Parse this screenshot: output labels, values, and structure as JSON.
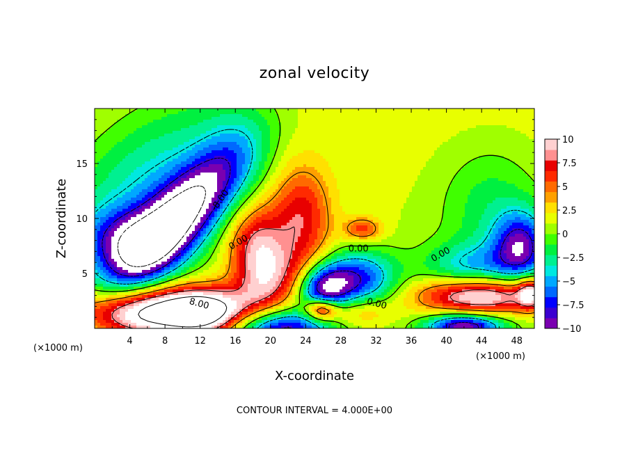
{
  "title": "zonal velocity",
  "footer": "CONTOUR INTERVAL = 4.000E+00",
  "chart_data": {
    "type": "heatmap",
    "title": "zonal velocity",
    "xlabel": "X-coordinate",
    "ylabel": "Z-coordinate",
    "x_unit_note_left": "(×1000 m)",
    "x_unit_note_right": "(×1000 m)",
    "xlim": [
      0,
      50
    ],
    "ylim": [
      0,
      20
    ],
    "x_ticks": [
      4,
      8,
      12,
      16,
      20,
      24,
      28,
      32,
      36,
      40,
      44,
      48
    ],
    "y_ticks": [
      5,
      10,
      15
    ],
    "colorbar": {
      "ticks": [
        "10",
        "7.5",
        "5",
        "2.5",
        "0",
        "−2.5",
        "−5",
        "−7.5",
        "−10"
      ],
      "tick_values": [
        10,
        7.5,
        5,
        2.5,
        0,
        -2.5,
        -5,
        -7.5,
        -10
      ],
      "range": [
        -10,
        10
      ],
      "colors": [
        "#7a00b0",
        "#3a00d0",
        "#0000ff",
        "#0068ff",
        "#00a8ff",
        "#00e8e0",
        "#00f090",
        "#00f040",
        "#40ff00",
        "#a0ff00",
        "#e8ff00",
        "#ffe000",
        "#ffa000",
        "#ff6a00",
        "#ff2a00",
        "#e80000",
        "#ff9090",
        "#ffd0d0"
      ]
    },
    "contour_labels": [
      {
        "text": "-8.00",
        "x": 14.5,
        "y": 11.5,
        "rotate": -55
      },
      {
        "text": "0.00",
        "x": 16.5,
        "y": 7.6,
        "rotate": -30
      },
      {
        "text": "8.00",
        "x": 11.8,
        "y": 2.0,
        "rotate": 15
      },
      {
        "text": "0.00",
        "x": 30,
        "y": 7.0,
        "rotate": 0
      },
      {
        "text": "0.00",
        "x": 32,
        "y": 2.0,
        "rotate": 15
      },
      {
        "text": "0.00",
        "x": 39.5,
        "y": 6.5,
        "rotate": -30
      }
    ],
    "contour_interval": 4.0,
    "field_features": [
      {
        "kind": "min",
        "x": 9,
        "y": 9.5,
        "sx": 6.5,
        "sy": 2.2,
        "rot": 40,
        "amp": -13
      },
      {
        "kind": "min",
        "x": 6,
        "y": 13,
        "sx": 8,
        "sy": 4.5,
        "rot": 35,
        "amp": -5
      },
      {
        "kind": "min",
        "x": 3.5,
        "y": 8,
        "sx": 3.5,
        "sy": 2,
        "rot": 0,
        "amp": -6
      },
      {
        "kind": "max",
        "x": 6,
        "y": 1.5,
        "sx": 6,
        "sy": 1.6,
        "rot": 0,
        "amp": 13
      },
      {
        "kind": "max",
        "x": 12.5,
        "y": 1.5,
        "sx": 3,
        "sy": 1.5,
        "rot": 0,
        "amp": 9
      },
      {
        "kind": "max",
        "x": 18.5,
        "y": 7.2,
        "sx": 2.3,
        "sy": 2.8,
        "rot": 0,
        "amp": 8
      },
      {
        "kind": "max",
        "x": 23.5,
        "y": 10.5,
        "sx": 2.3,
        "sy": 3,
        "rot": 0,
        "amp": 6
      },
      {
        "kind": "max",
        "x": 20.5,
        "y": 4,
        "sx": 4,
        "sy": 2,
        "rot": 30,
        "amp": 5
      },
      {
        "kind": "max",
        "x": 27.5,
        "y": 4.5,
        "sx": 2,
        "sy": 1.5,
        "rot": 0,
        "amp": -1
      },
      {
        "kind": "min",
        "x": 26,
        "y": 3.5,
        "sx": 2,
        "sy": 1.5,
        "rot": 0,
        "amp": -9
      },
      {
        "kind": "min",
        "x": 30,
        "y": 4.5,
        "sx": 3,
        "sy": 1.8,
        "rot": 0,
        "amp": -8
      },
      {
        "kind": "max",
        "x": 25.8,
        "y": 1.7,
        "sx": 1.3,
        "sy": 0.7,
        "rot": 0,
        "amp": 9
      },
      {
        "kind": "min",
        "x": 21,
        "y": 0,
        "sx": 4,
        "sy": 1.2,
        "rot": 0,
        "amp": -10
      },
      {
        "kind": "max",
        "x": 29.5,
        "y": 1.5,
        "sx": 3,
        "sy": 1,
        "rot": 0,
        "amp": 4
      },
      {
        "kind": "max",
        "x": 30.5,
        "y": 9,
        "sx": 1.5,
        "sy": 0.8,
        "rot": 0,
        "amp": 5
      },
      {
        "kind": "max",
        "x": 44,
        "y": 3,
        "sx": 5,
        "sy": 1.2,
        "rot": 0,
        "amp": 11
      },
      {
        "kind": "min",
        "x": 42,
        "y": 0.2,
        "sx": 3,
        "sy": 0.8,
        "rot": 0,
        "amp": -11
      },
      {
        "kind": "min",
        "x": 48.5,
        "y": 7.5,
        "sx": 2.2,
        "sy": 2.2,
        "rot": 0,
        "amp": -9
      },
      {
        "kind": "min",
        "x": 45,
        "y": 11,
        "sx": 4,
        "sy": 4,
        "rot": 0,
        "amp": -3
      },
      {
        "kind": "min",
        "x": 43,
        "y": 5.5,
        "sx": 4,
        "sy": 1.6,
        "rot": 0,
        "amp": -5
      },
      {
        "kind": "min",
        "x": 16,
        "y": 16,
        "sx": 3,
        "sy": 4,
        "rot": 0,
        "amp": -2
      },
      {
        "kind": "max",
        "x": 49.5,
        "y": 3.2,
        "sx": 1,
        "sy": 1,
        "rot": 0,
        "amp": 7
      }
    ]
  }
}
